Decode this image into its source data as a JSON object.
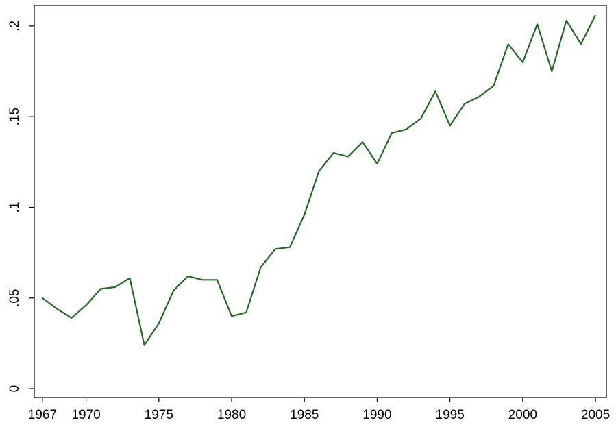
{
  "chart_data": {
    "type": "line",
    "x": [
      1967,
      1968,
      1969,
      1970,
      1971,
      1972,
      1973,
      1974,
      1975,
      1976,
      1977,
      1978,
      1979,
      1980,
      1981,
      1982,
      1983,
      1984,
      1985,
      1986,
      1987,
      1988,
      1989,
      1990,
      1991,
      1992,
      1993,
      1994,
      1995,
      1996,
      1997,
      1998,
      1999,
      2000,
      2001,
      2002,
      2003,
      2004,
      2005
    ],
    "series": [
      {
        "color": "#1f6b1f",
        "values": [
          0.05,
          0.044,
          0.039,
          0.046,
          0.055,
          0.056,
          0.061,
          0.024,
          0.036,
          0.054,
          0.062,
          0.06,
          0.06,
          0.04,
          0.042,
          0.067,
          0.077,
          0.078,
          0.096,
          0.12,
          0.13,
          0.128,
          0.136,
          0.124,
          0.141,
          0.143,
          0.149,
          0.164,
          0.145,
          0.157,
          0.161,
          0.167,
          0.19,
          0.18,
          0.201,
          0.175,
          0.203,
          0.19,
          0.206
        ]
      }
    ],
    "xlim": [
      1966.44,
      2005.75
    ],
    "xticks": [
      1967,
      1970,
      1975,
      1980,
      1985,
      1990,
      1995,
      2000,
      2005
    ],
    "ylim": [
      -0.0049,
      0.2113
    ],
    "yticks": [
      0,
      {
        "value": 0.05,
        "label": ".05"
      },
      {
        "value": 0.1,
        "label": ".1"
      },
      {
        "value": 0.15,
        "label": ".15"
      },
      {
        "value": 0.2,
        "label": ".2"
      }
    ]
  }
}
